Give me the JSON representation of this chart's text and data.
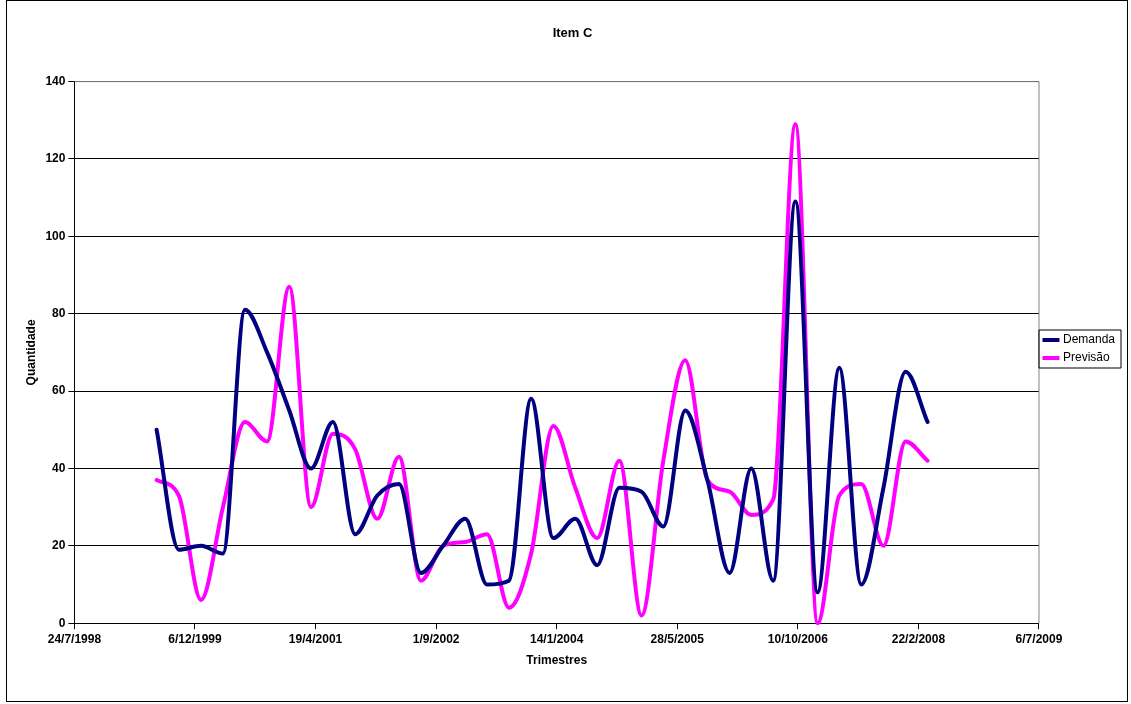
{
  "chart_data": {
    "type": "line",
    "title": "Item C",
    "xlabel": "Trimestres",
    "ylabel": "Quantidade",
    "x": [
      "1999-06-30",
      "1999-09-30",
      "1999-12-31",
      "2000-03-31",
      "2000-06-30",
      "2000-09-30",
      "2000-12-31",
      "2001-03-31",
      "2001-06-30",
      "2001-09-30",
      "2001-12-31",
      "2002-03-31",
      "2002-06-30",
      "2002-09-30",
      "2002-12-31",
      "2003-03-31",
      "2003-06-30",
      "2003-09-30",
      "2003-12-31",
      "2004-03-31",
      "2004-06-30",
      "2004-09-30",
      "2004-12-31",
      "2005-03-31",
      "2005-06-30",
      "2005-09-30",
      "2005-12-31",
      "2006-03-31",
      "2006-06-30",
      "2006-09-30",
      "2006-12-31",
      "2007-03-31",
      "2007-06-30",
      "2007-09-30",
      "2007-12-31",
      "2008-03-31"
    ],
    "series": [
      {
        "name": "Demanda",
        "color": "#000080",
        "values": [
          50,
          19,
          20,
          18,
          81,
          70,
          55,
          40,
          52,
          23,
          33,
          36,
          13,
          20,
          27,
          10,
          11,
          58,
          22,
          27,
          15,
          35,
          34,
          25,
          55,
          37,
          13,
          40,
          11,
          109,
          8,
          66,
          10,
          35,
          65,
          52
        ]
      },
      {
        "name": "Previsão",
        "color": "#ff00ff",
        "values": [
          37,
          33,
          6,
          30,
          52,
          47,
          87,
          30,
          49,
          45,
          27,
          43,
          11,
          20,
          21,
          23,
          4,
          18,
          51,
          35,
          22,
          42,
          2,
          42,
          68,
          37,
          34,
          28,
          32,
          129,
          0,
          33,
          36,
          20,
          47,
          42
        ]
      }
    ],
    "xlim": [
      "1998-07-24",
      "2009-07-06"
    ],
    "xticks": [
      {
        "value": "1998-07-24",
        "label": "24/7/1998"
      },
      {
        "value": "1999-12-06",
        "label": "6/12/1999"
      },
      {
        "value": "2001-04-19",
        "label": "19/4/2001"
      },
      {
        "value": "2002-09-01",
        "label": "1/9/2002"
      },
      {
        "value": "2004-01-14",
        "label": "14/1/2004"
      },
      {
        "value": "2005-05-28",
        "label": "28/5/2005"
      },
      {
        "value": "2006-10-10",
        "label": "10/10/2006"
      },
      {
        "value": "2008-02-22",
        "label": "22/2/2008"
      },
      {
        "value": "2009-07-06",
        "label": "6/7/2009"
      }
    ],
    "ylim": [
      0,
      140
    ],
    "yticks": [
      0,
      20,
      40,
      60,
      80,
      100,
      120,
      140
    ],
    "grid": "y",
    "legend": "right",
    "marker": "none",
    "line_style": "solid"
  }
}
